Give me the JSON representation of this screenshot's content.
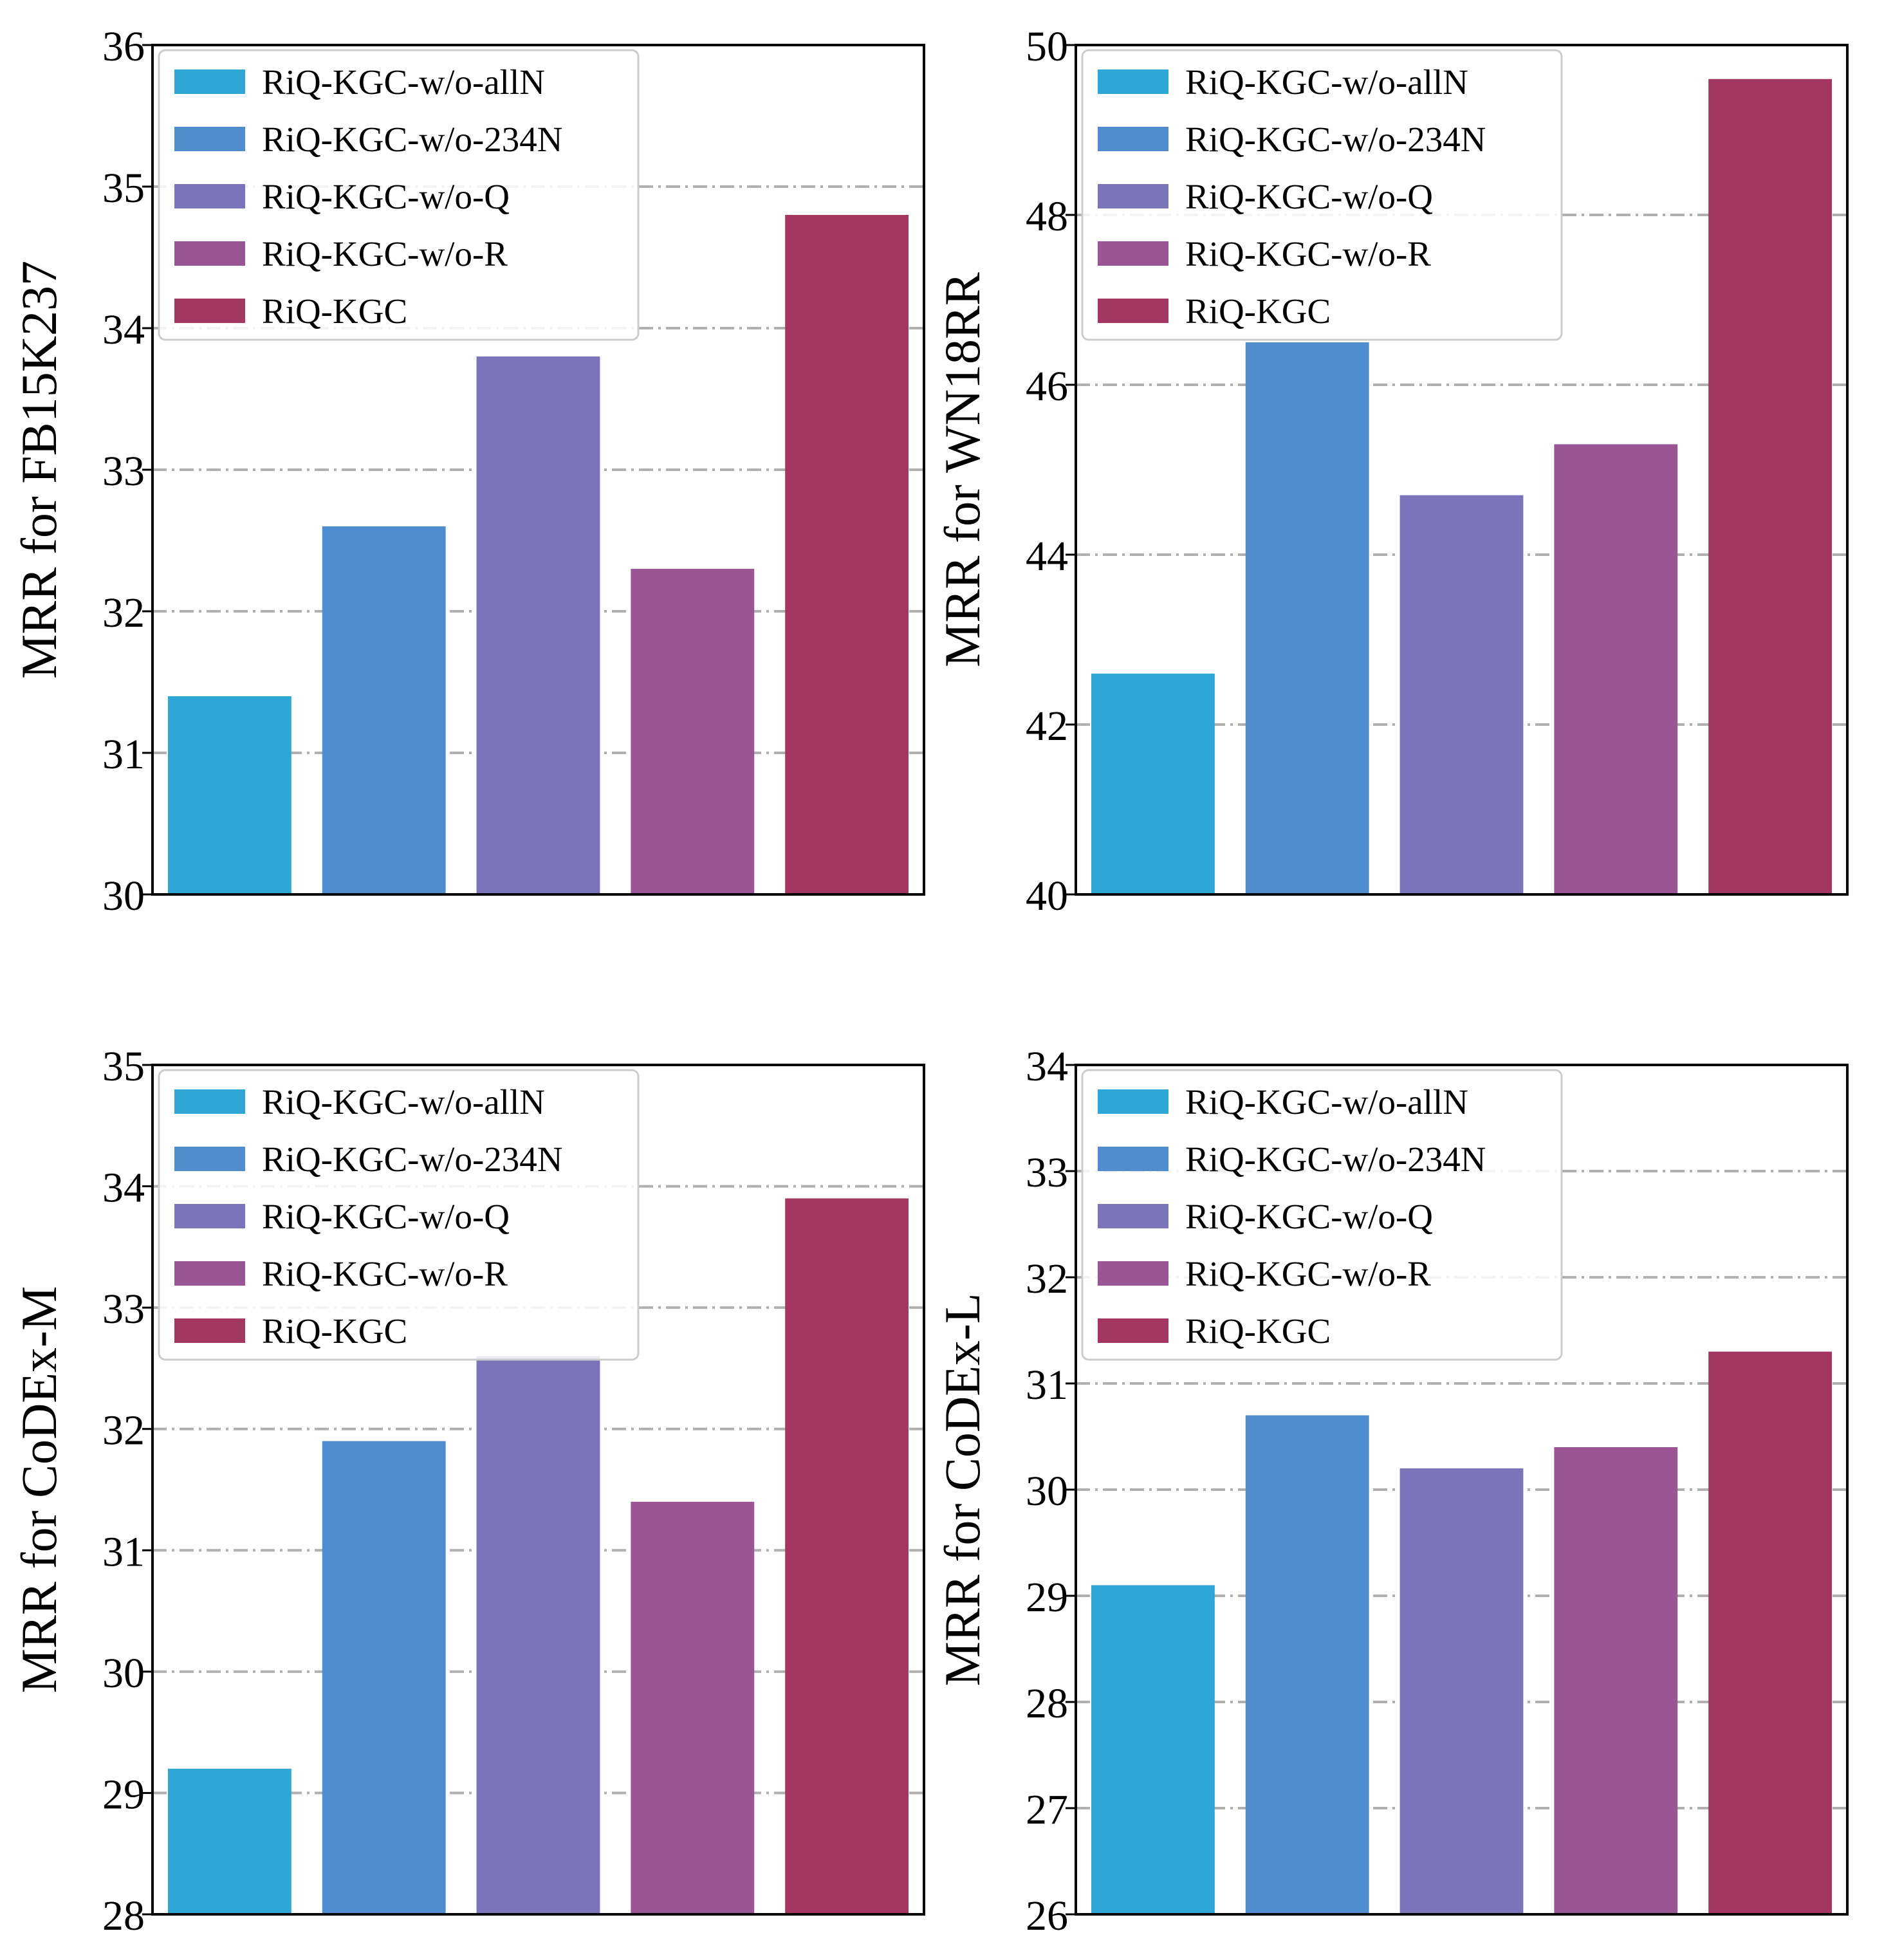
{
  "legend_labels": [
    "RiQ-KGC-w/o-allN",
    "RiQ-KGC-w/o-234N",
    "RiQ-KGC-w/o-Q",
    "RiQ-KGC-w/o-R",
    "RiQ-KGC"
  ],
  "colors": [
    "#2ea6d6",
    "#508dce",
    "#7b74bb",
    "#9a5595",
    "#a33762"
  ],
  "chart_data": [
    {
      "type": "bar",
      "ylabel": "MRR for FB15K237",
      "categories": [
        "RiQ-KGC-w/o-allN",
        "RiQ-KGC-w/o-234N",
        "RiQ-KGC-w/o-Q",
        "RiQ-KGC-w/o-R",
        "RiQ-KGC"
      ],
      "values": [
        31.4,
        32.6,
        33.8,
        32.3,
        34.8
      ],
      "ylim": [
        30,
        36
      ],
      "yticks": [
        "30",
        "31",
        "32",
        "33",
        "34",
        "35",
        "36"
      ],
      "grid": true,
      "legend": "top-left"
    },
    {
      "type": "bar",
      "ylabel": "MRR for WN18RR",
      "categories": [
        "RiQ-KGC-w/o-allN",
        "RiQ-KGC-w/o-234N",
        "RiQ-KGC-w/o-Q",
        "RiQ-KGC-w/o-R",
        "RiQ-KGC"
      ],
      "values": [
        42.6,
        46.5,
        44.7,
        45.3,
        49.6
      ],
      "ylim": [
        40,
        50
      ],
      "yticks": [
        "40",
        "42",
        "44",
        "46",
        "48",
        "50"
      ],
      "grid": true,
      "legend": "top-left"
    },
    {
      "type": "bar",
      "ylabel": "MRR for CoDEx-M",
      "categories": [
        "RiQ-KGC-w/o-allN",
        "RiQ-KGC-w/o-234N",
        "RiQ-KGC-w/o-Q",
        "RiQ-KGC-w/o-R",
        "RiQ-KGC"
      ],
      "values": [
        29.2,
        31.9,
        32.6,
        31.4,
        33.9
      ],
      "ylim": [
        28,
        35
      ],
      "yticks": [
        "28",
        "29",
        "30",
        "31",
        "32",
        "33",
        "34",
        "35"
      ],
      "grid": true,
      "legend": "top-left"
    },
    {
      "type": "bar",
      "ylabel": "MRR for CoDEx-L",
      "categories": [
        "RiQ-KGC-w/o-allN",
        "RiQ-KGC-w/o-234N",
        "RiQ-KGC-w/o-Q",
        "RiQ-KGC-w/o-R",
        "RiQ-KGC"
      ],
      "values": [
        29.1,
        30.7,
        30.2,
        30.4,
        31.3
      ],
      "ylim": [
        26,
        34
      ],
      "yticks": [
        "26",
        "27",
        "28",
        "29",
        "30",
        "31",
        "32",
        "33",
        "34"
      ],
      "grid": true,
      "legend": "top-left"
    }
  ]
}
